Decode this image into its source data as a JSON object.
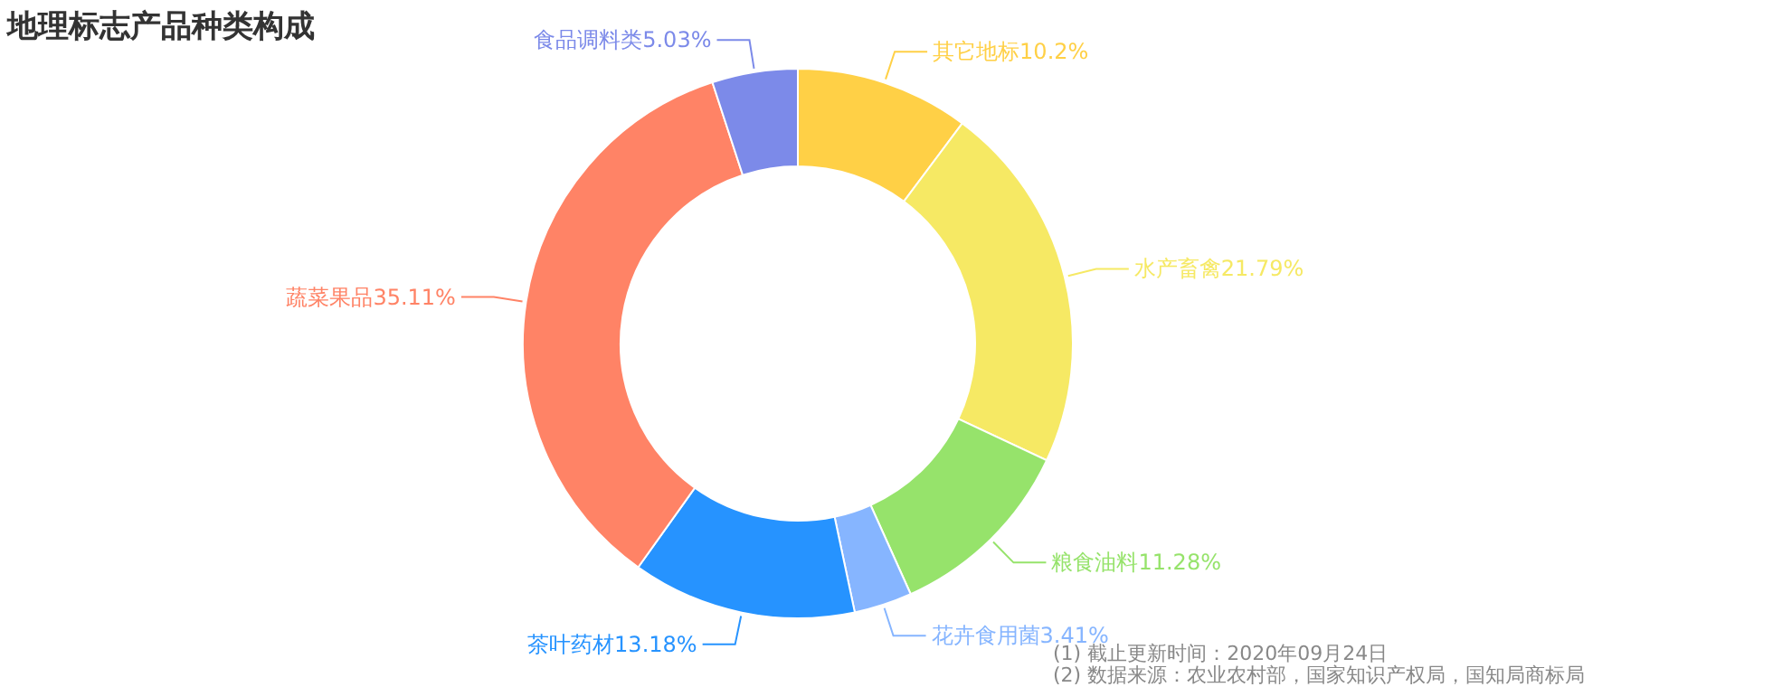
{
  "chart_data": {
    "type": "donut",
    "title": "地理标志产品种类构成",
    "categories": [
      "其它地标",
      "水产畜禽",
      "粮食油料",
      "花卉食用菌",
      "茶叶药材",
      "蔬菜果品",
      "食品调料类"
    ],
    "values": [
      10.2,
      21.79,
      11.28,
      3.41,
      13.18,
      35.11,
      5.03
    ],
    "value_labels": [
      "10.2%",
      "21.79%",
      "11.28%",
      "3.41%",
      "13.18%",
      "35.11%",
      "5.03%"
    ],
    "colors": [
      "#ffd046",
      "#f6e964",
      "#96e36b",
      "#86b5ff",
      "#2693ff",
      "#ff8366",
      "#7c8ae9"
    ],
    "annotations": [
      "(1) 截止更新时间：2020年09月24日",
      "(2) 数据来源：农业农村部，国家知识产权局，国知局商标局"
    ]
  }
}
